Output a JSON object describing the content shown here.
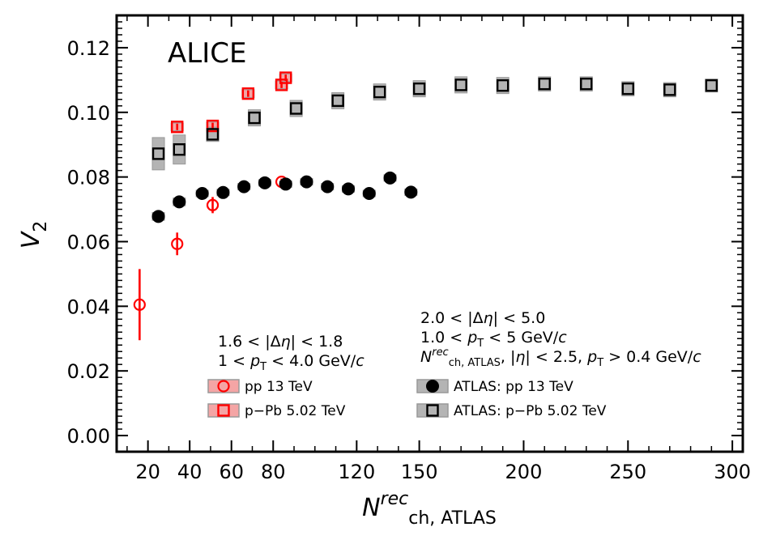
{
  "chart_data": {
    "type": "scatter",
    "experiment_label": "ALICE",
    "xlabel": {
      "main": "N",
      "sup": "rec",
      "sub": "ch, ATLAS"
    },
    "ylabel": {
      "main": "V",
      "sub": "2"
    },
    "xlim": [
      5,
      305
    ],
    "ylim": [
      -0.005,
      0.13
    ],
    "x_ticks": [
      20,
      40,
      60,
      80,
      120,
      150,
      200,
      250,
      300
    ],
    "y_ticks": [
      0.0,
      0.02,
      0.04,
      0.06,
      0.08,
      0.1,
      0.12
    ],
    "y_tick_labels": [
      "0.00",
      "0.02",
      "0.04",
      "0.06",
      "0.08",
      "0.10",
      "0.12"
    ],
    "legend_groups": [
      {
        "lines": [
          [
            {
              "t": "1.6 < |Δ"
            },
            {
              "t": "η",
              "i": true
            },
            {
              "t": "| < 1.8"
            }
          ],
          [
            {
              "t": "1 < "
            },
            {
              "t": "p",
              "i": true
            },
            {
              "t": "T",
              "sub": true
            },
            {
              "t": " < 4.0 GeV/"
            },
            {
              "t": "c",
              "i": true
            }
          ]
        ]
      },
      {
        "lines": [
          [
            {
              "t": "2.0 < |Δ"
            },
            {
              "t": "η",
              "i": true
            },
            {
              "t": "| < 5.0"
            }
          ],
          [
            {
              "t": "1.0 < "
            },
            {
              "t": "p",
              "i": true
            },
            {
              "t": "T",
              "sub": true
            },
            {
              "t": " < 5 GeV/"
            },
            {
              "t": "c",
              "i": true
            }
          ],
          [
            {
              "t": "N",
              "i": true
            },
            {
              "t": "rec",
              "sup": true,
              "i": true
            },
            {
              "t": "ch, ATLAS",
              "sub": true
            },
            {
              "t": ", |"
            },
            {
              "t": "η",
              "i": true
            },
            {
              "t": "| < 2.5, "
            },
            {
              "t": "p",
              "i": true
            },
            {
              "t": "T",
              "sub": true
            },
            {
              "t": " > 0.4 GeV/"
            },
            {
              "t": "c",
              "i": true
            }
          ]
        ]
      }
    ],
    "series": [
      {
        "name": "pp 13 TeV",
        "marker": "circle-open",
        "color": "#ff0000",
        "sys_color": "#f4a5a5",
        "points": [
          {
            "x": 16,
            "y": 0.0405,
            "err": 0.011,
            "sys": 0
          },
          {
            "x": 34,
            "y": 0.0593,
            "err": 0.0035,
            "sys": 0
          },
          {
            "x": 51,
            "y": 0.0713,
            "err": 0.0025,
            "sys": 0
          },
          {
            "x": 84,
            "y": 0.0785,
            "err": 0.001,
            "sys": 0
          }
        ]
      },
      {
        "name": "p−Pb 5.02 TeV",
        "marker": "square-open",
        "color": "#ff0000",
        "sys_color": "#f4a5a5",
        "points": [
          {
            "x": 34,
            "y": 0.0955,
            "err": 0.001,
            "sys": 0.0012
          },
          {
            "x": 51,
            "y": 0.0958,
            "err": 0.001,
            "sys": 0.0012
          },
          {
            "x": 68,
            "y": 0.1058,
            "err": 0.001,
            "sys": 0.0012
          },
          {
            "x": 84,
            "y": 0.1085,
            "err": 0.001,
            "sys": 0.0012
          },
          {
            "x": 86,
            "y": 0.1107,
            "err": 0.001,
            "sys": 0.0012
          }
        ]
      },
      {
        "name": "ATLAS: pp 13 TeV",
        "marker": "circle-filled",
        "color": "#000000",
        "sys_color": "#b4b4b4",
        "points": [
          {
            "x": 25,
            "y": 0.0678,
            "sys": 0.0012
          },
          {
            "x": 35,
            "y": 0.0723,
            "sys": 0.0012
          },
          {
            "x": 46,
            "y": 0.0749,
            "sys": 0.001
          },
          {
            "x": 56,
            "y": 0.0752,
            "sys": 0.001
          },
          {
            "x": 66,
            "y": 0.077,
            "sys": 0.001
          },
          {
            "x": 76,
            "y": 0.0782,
            "sys": 0.001
          },
          {
            "x": 86,
            "y": 0.0778,
            "sys": 0.001
          },
          {
            "x": 96,
            "y": 0.0785,
            "sys": 0.001
          },
          {
            "x": 106,
            "y": 0.077,
            "sys": 0.001
          },
          {
            "x": 116,
            "y": 0.0763,
            "sys": 0.001
          },
          {
            "x": 126,
            "y": 0.0749,
            "sys": 0.001
          },
          {
            "x": 136,
            "y": 0.0797,
            "sys": 0.001
          },
          {
            "x": 146,
            "y": 0.0753,
            "sys": 0.001
          }
        ]
      },
      {
        "name": "ATLAS: p−Pb 5.02 TeV",
        "marker": "square-open",
        "color": "#000000",
        "sys_color": "#b4b4b4",
        "points": [
          {
            "x": 25,
            "y": 0.0872,
            "sys": 0.005
          },
          {
            "x": 35,
            "y": 0.0885,
            "sys": 0.0045
          },
          {
            "x": 51,
            "y": 0.0932,
            "sys": 0.0022
          },
          {
            "x": 71,
            "y": 0.0983,
            "sys": 0.0025
          },
          {
            "x": 91,
            "y": 0.1012,
            "sys": 0.0025
          },
          {
            "x": 111,
            "y": 0.1036,
            "sys": 0.0025
          },
          {
            "x": 131,
            "y": 0.1063,
            "sys": 0.0025
          },
          {
            "x": 150,
            "y": 0.1073,
            "sys": 0.0025
          },
          {
            "x": 170,
            "y": 0.1085,
            "sys": 0.0025
          },
          {
            "x": 190,
            "y": 0.1083,
            "sys": 0.0025
          },
          {
            "x": 210,
            "y": 0.1088,
            "sys": 0.0022
          },
          {
            "x": 230,
            "y": 0.1088,
            "sys": 0.0022
          },
          {
            "x": 250,
            "y": 0.1073,
            "sys": 0.0022
          },
          {
            "x": 270,
            "y": 0.107,
            "sys": 0.0022
          },
          {
            "x": 290,
            "y": 0.1083,
            "sys": 0.002
          }
        ]
      }
    ]
  }
}
